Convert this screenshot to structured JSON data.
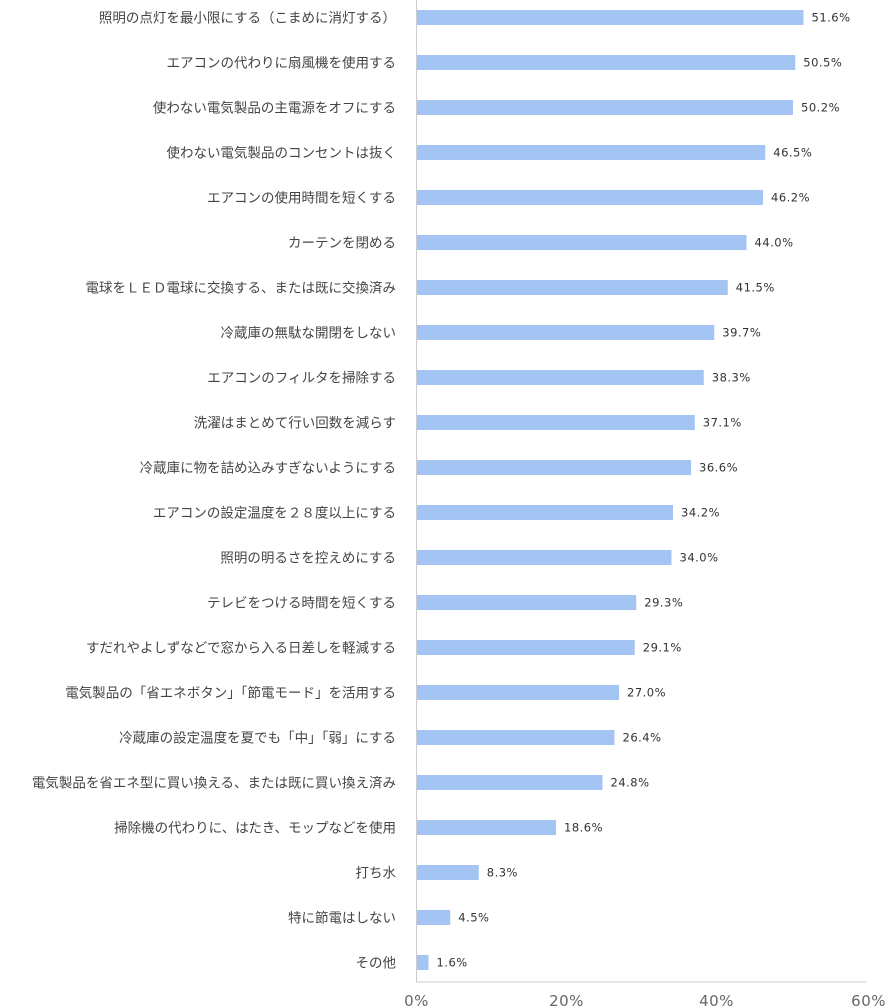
{
  "chart_data": {
    "type": "bar",
    "orientation": "horizontal",
    "title": "",
    "xlabel": "",
    "ylabel": "",
    "xlim": [
      0,
      60
    ],
    "x_ticks": [
      "0%",
      "20%",
      "40%",
      "60%"
    ],
    "x_tick_values": [
      0,
      20,
      40,
      60
    ],
    "bar_color": "#a4c4f4",
    "value_suffix": "%",
    "categories": [
      "照明の点灯を最小限にする（こまめに消灯する）",
      "エアコンの代わりに扇風機を使用する",
      "使わない電気製品の主電源をオフにする",
      "使わない電気製品のコンセントは抜く",
      "エアコンの使用時間を短くする",
      "カーテンを閉める",
      "電球をＬＥＤ電球に交換する、または既に交換済み",
      "冷蔵庫の無駄な開閉をしない",
      "エアコンのフィルタを掃除する",
      "洗濯はまとめて行い回数を減らす",
      "冷蔵庫に物を詰め込みすぎないようにする",
      "エアコンの設定温度を２８度以上にする",
      "照明の明るさを控えめにする",
      "テレビをつける時間を短くする",
      "すだれやよしずなどで窓から入る日差しを軽減する",
      "電気製品の「省エネボタン」「節電モード」を活用する",
      "冷蔵庫の設定温度を夏でも「中」「弱」にする",
      "電気製品を省エネ型に買い換える、または既に買い換え済み",
      "掃除機の代わりに、はたき、モップなどを使用",
      "打ち水",
      "特に節電はしない",
      "その他"
    ],
    "values": [
      51.6,
      50.5,
      50.2,
      46.5,
      46.2,
      44.0,
      41.5,
      39.7,
      38.3,
      37.1,
      36.6,
      34.2,
      34.0,
      29.3,
      29.1,
      27.0,
      26.4,
      24.8,
      18.6,
      8.3,
      4.5,
      1.6
    ]
  }
}
